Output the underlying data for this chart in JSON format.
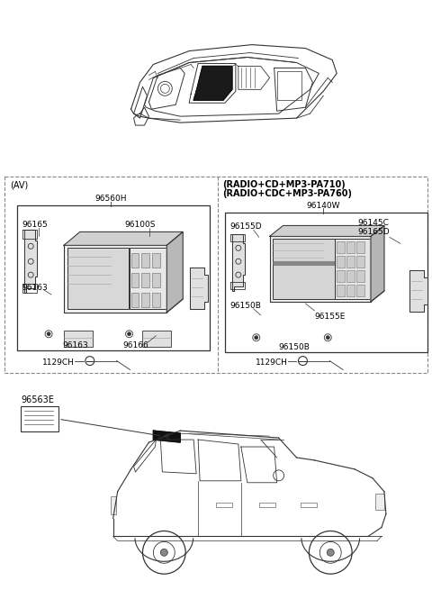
{
  "bg_color": "#ffffff",
  "line_color": "#333333",
  "dark_color": "#111111",
  "gray_color": "#888888",
  "light_gray": "#cccccc",
  "dashed_color": "#666666",
  "section_left_label": "(AV)",
  "section_left_part": "96560H",
  "left_parts": {
    "tl": "96165",
    "tr": "96100S",
    "ml": "96163",
    "bl": "96163",
    "br": "96166"
  },
  "section_left_bolt": "1129CH",
  "section_right_line1": "(RADIO+CD+MP3-PA710)",
  "section_right_line2": "(RADIO+CDC+MP3-PA760)",
  "section_right_part": "96140W",
  "right_parts": {
    "tl": "96155D",
    "tr1": "96145C",
    "tr2": "96165D",
    "ml": "96150B",
    "mr": "96155E",
    "bl": "96150B"
  },
  "section_right_bolt": "1129CH",
  "antenna_label": "96563E",
  "fs": 6.5,
  "fs_hdr": 7.0
}
